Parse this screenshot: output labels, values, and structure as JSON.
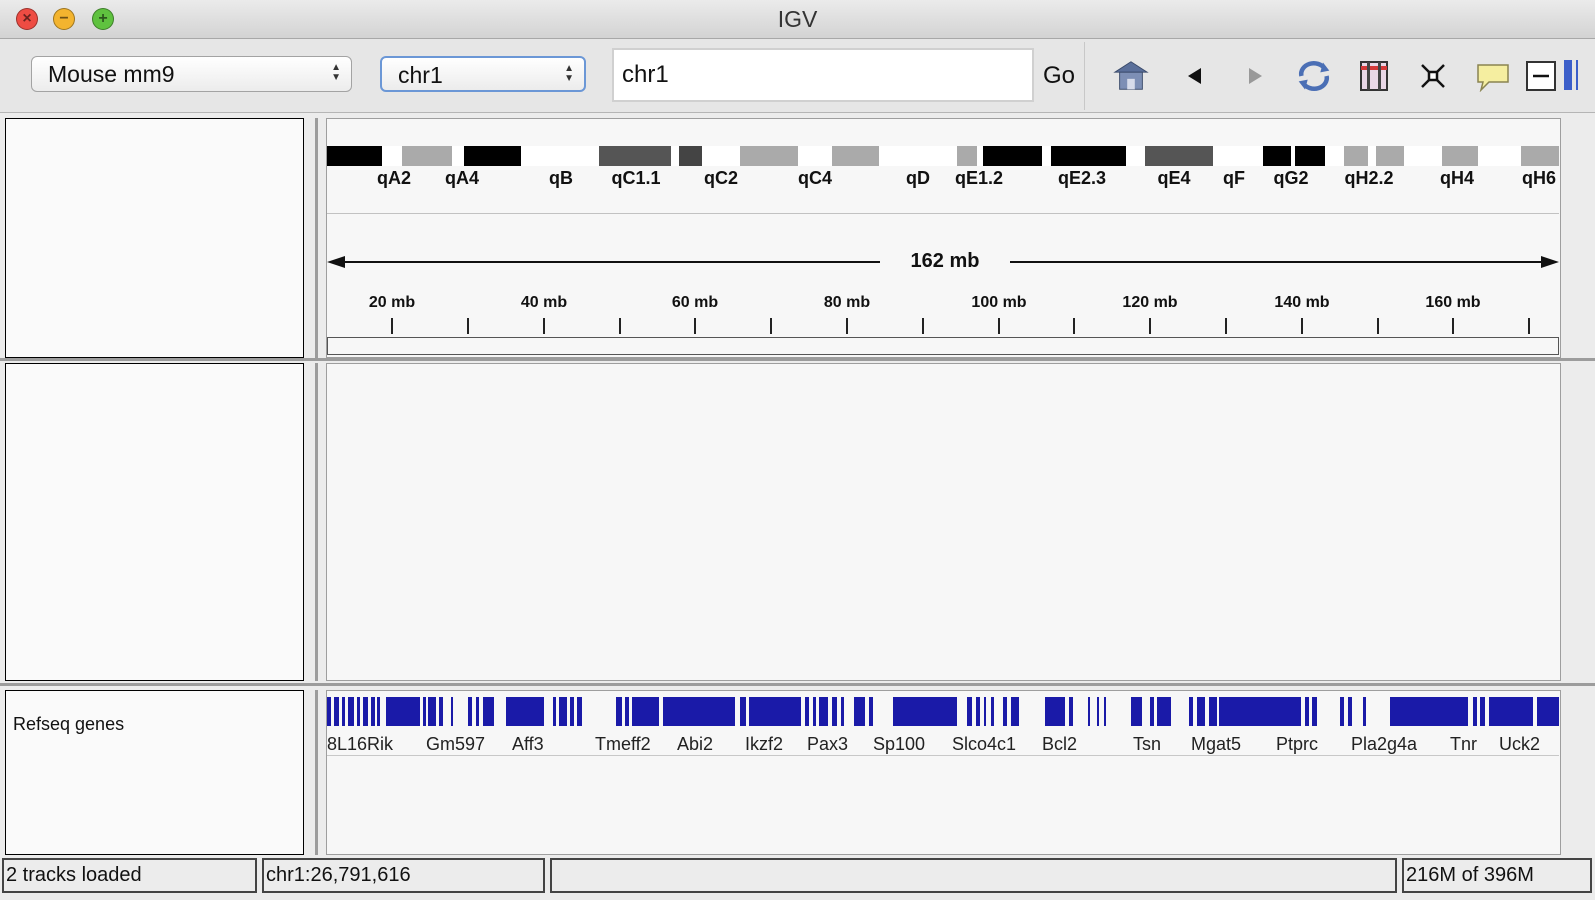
{
  "window": {
    "title": "IGV",
    "controls": [
      "close-icon",
      "minimize-icon",
      "zoom-icon"
    ]
  },
  "toolbar": {
    "genome_select": "Mouse mm9",
    "chromosome_select": "chr1",
    "locus_value": "chr1",
    "go_label": "Go",
    "icons": [
      "home-icon",
      "back-arrow-icon",
      "forward-arrow-icon",
      "refresh-icon",
      "region-of-interest-icon",
      "fit-to-window-icon",
      "popup-info-icon",
      "zoom-out-icon",
      "zoom-slider-icon"
    ]
  },
  "ideogram": {
    "bands": [
      "qA2",
      "qA4",
      "qB",
      "qC1.1",
      "qC2",
      "qC4",
      "qD",
      "qE1.2",
      "qE2.3",
      "qE4",
      "qF",
      "qG2",
      "qH2.2",
      "qH4",
      "qH6"
    ]
  },
  "ruler": {
    "span": "162 mb",
    "ticks": [
      "20 mb",
      "40 mb",
      "60 mb",
      "80 mb",
      "100 mb",
      "120 mb",
      "140 mb",
      "160 mb"
    ]
  },
  "tracks": {
    "feature_track_name": "Refseq genes",
    "gene_labels": [
      "8L16Rik",
      "Gm597",
      "Aff3",
      "Tmeff2",
      "Abi2",
      "Ikzf2",
      "Pax3",
      "Sp100",
      "Slco4c1",
      "Bcl2",
      "Tsn",
      "Mgat5",
      "Ptprc",
      "Pla2g4a",
      "Tnr",
      "Uck2"
    ]
  },
  "status_bar": {
    "message": "2 tracks loaded",
    "position": "chr1:26,791,616",
    "middle": "",
    "memory": "216M of 396M"
  },
  "colors": {
    "gene": "#1a1aa8",
    "band_black": "#000000",
    "band_dark": "#555555",
    "band_gray": "#aaaaaa",
    "band_white": "#ffffff"
  }
}
